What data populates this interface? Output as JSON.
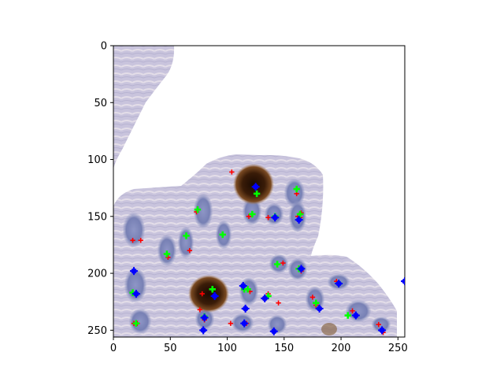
{
  "chart_data": {
    "type": "scatter",
    "title": "",
    "xlabel": "",
    "ylabel": "",
    "xlim": [
      0,
      256
    ],
    "ylim": [
      256,
      0
    ],
    "y_inverted": true,
    "grid": false,
    "background": "image",
    "x_ticks": [
      0,
      50,
      100,
      150,
      200,
      250
    ],
    "y_ticks": [
      0,
      50,
      100,
      150,
      200,
      250
    ],
    "series": [
      {
        "color": "#ff0000",
        "marker": "plus",
        "points": [
          [
            104,
            111
          ],
          [
            125,
            125
          ],
          [
            17,
            171
          ],
          [
            24,
            171
          ],
          [
            48,
            186
          ],
          [
            67,
            180
          ],
          [
            73,
            146
          ],
          [
            96,
            166
          ],
          [
            119,
            150
          ],
          [
            136,
            151
          ],
          [
            162,
            150
          ],
          [
            164,
            151
          ],
          [
            165,
            147
          ],
          [
            196,
            207
          ],
          [
            175,
            221
          ],
          [
            178,
            228
          ],
          [
            120,
            216
          ],
          [
            136,
            218
          ],
          [
            145,
            226
          ],
          [
            78,
            218
          ],
          [
            76,
            232
          ],
          [
            80,
            241
          ],
          [
            117,
            244
          ],
          [
            103,
            244
          ],
          [
            18,
            244
          ],
          [
            21,
            244
          ],
          [
            210,
            233
          ],
          [
            233,
            245
          ],
          [
            237,
            252
          ],
          [
            161,
            130
          ],
          [
            165,
            198
          ],
          [
            149,
            191
          ]
        ]
      },
      {
        "color": "#00ff00",
        "marker": "plus",
        "points": [
          [
            126,
            130
          ],
          [
            161,
            126
          ],
          [
            164,
            148
          ],
          [
            122,
            148
          ],
          [
            74,
            144
          ],
          [
            96,
            166
          ],
          [
            64,
            167
          ],
          [
            47,
            183
          ],
          [
            144,
            192
          ],
          [
            163,
            196
          ],
          [
            87,
            214
          ],
          [
            115,
            214
          ],
          [
            118,
            214
          ],
          [
            178,
            226
          ],
          [
            17,
            217
          ],
          [
            80,
            238
          ],
          [
            20,
            244
          ],
          [
            206,
            237
          ],
          [
            198,
            209
          ],
          [
            136,
            220
          ],
          [
            142,
            150
          ]
        ]
      },
      {
        "color": "#0000ff",
        "marker": "dot",
        "points": [
          [
            125,
            124
          ],
          [
            142,
            151
          ],
          [
            163,
            153
          ],
          [
            18,
            198
          ],
          [
            20,
            218
          ],
          [
            114,
            211
          ],
          [
            89,
            220
          ],
          [
            133,
            222
          ],
          [
            198,
            209
          ],
          [
            116,
            231
          ],
          [
            181,
            231
          ],
          [
            165,
            196
          ],
          [
            213,
            237
          ],
          [
            80,
            239
          ],
          [
            115,
            244
          ],
          [
            79,
            250
          ],
          [
            141,
            251
          ],
          [
            236,
            250
          ],
          [
            256,
            207
          ]
        ]
      }
    ]
  }
}
